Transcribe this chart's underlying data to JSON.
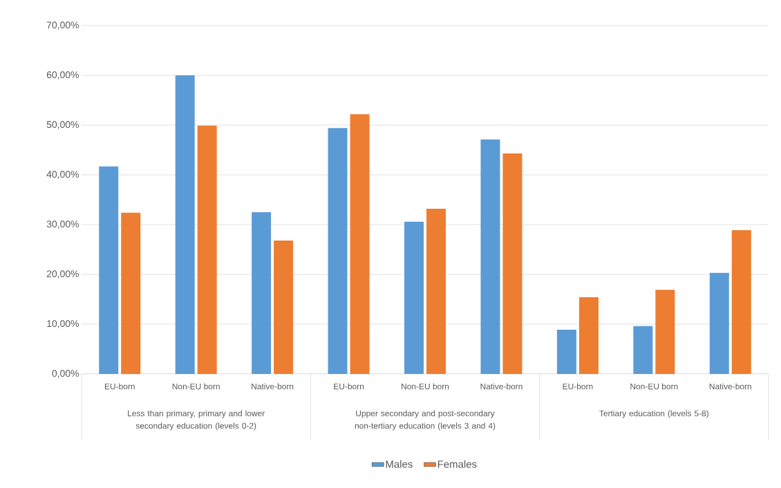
{
  "chart_data": {
    "type": "bar",
    "categories": [
      "EU-born",
      "Non-EU born",
      "Native-born",
      "EU-born",
      "Non-EU born",
      "Native-born",
      "EU-born",
      "Non-EU born",
      "Native-born"
    ],
    "series": [
      {
        "name": "Males",
        "color": "#5b9bd5",
        "values": [
          41.7,
          60.0,
          32.5,
          49.4,
          30.6,
          47.1,
          8.9,
          9.6,
          20.3
        ]
      },
      {
        "name": "Females",
        "color": "#ed7d31",
        "values": [
          32.4,
          49.9,
          26.8,
          52.2,
          33.2,
          44.3,
          15.4,
          16.9,
          28.9
        ]
      }
    ],
    "annotations": [
      "Less than primary, primary and lower secondary education (levels 0-2)",
      "Upper secondary and post-secondary non-tertiary education (levels 3 and 4)",
      "Tertiary education (levels 5-8)"
    ],
    "ylim": [
      0,
      70
    ],
    "yticks": [
      {
        "value": 0,
        "label": "0,00%"
      },
      {
        "value": 10,
        "label": "10,00%"
      },
      {
        "value": 20,
        "label": "20,00%"
      },
      {
        "value": 30,
        "label": "30,00%"
      },
      {
        "value": 40,
        "label": "40,00%"
      },
      {
        "value": 50,
        "label": "50,00%"
      },
      {
        "value": 60,
        "label": "60,00%"
      },
      {
        "value": 70,
        "label": "70,00%"
      }
    ],
    "grid": "y",
    "legend": "bottom"
  }
}
